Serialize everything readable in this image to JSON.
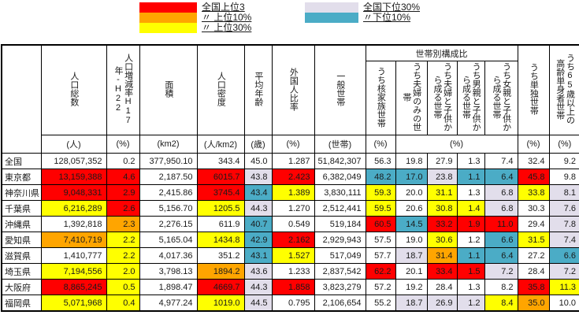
{
  "colors": {
    "top3": "#ff0000",
    "top10": "#ffa500",
    "top30": "#ffff00",
    "bottom30": "#e2deeb",
    "bottom10": "#4bacc6",
    "grid": "#000000"
  },
  "legend": {
    "left": [
      {
        "label": "全国上位3",
        "color_key": "top3"
      },
      {
        "label": "〃 上位10%",
        "color_key": "top10"
      },
      {
        "label": "〃 上位30%",
        "color_key": "top30"
      }
    ],
    "right": [
      {
        "label": "全国下位30%",
        "color_key": "bottom30"
      },
      {
        "label": "〃下位10%",
        "color_key": "bottom10"
      }
    ]
  },
  "chart_data": {
    "type": "table",
    "group_header": "世帯別構成比",
    "sub_unit": "(%)",
    "columns": [
      {
        "label": "",
        "unit": ""
      },
      {
        "label": "人口総数",
        "unit": "(人)"
      },
      {
        "label": "人口増減率H17年-H22",
        "unit": "(%)"
      },
      {
        "label": "面積",
        "unit": "(km2)"
      },
      {
        "label": "人口密度",
        "unit": "(人/km2)"
      },
      {
        "label": "平均年齢",
        "unit": "(歳)"
      },
      {
        "label": "外国人比率",
        "unit": "(%)"
      },
      {
        "label": "一般世帯",
        "unit": "(世帯)"
      },
      {
        "label": "うち核家族世帯",
        "unit": "(%)"
      },
      {
        "label": "うち夫婦のみの世帯",
        "unit": ""
      },
      {
        "label": "うち夫婦と子供から成る世帯",
        "unit": ""
      },
      {
        "label": "うち男親と子供から成る世帯",
        "unit": ""
      },
      {
        "label": "うち女親と子供から成る世帯",
        "unit": ""
      },
      {
        "label": "うち単独世帯",
        "unit": "(%)"
      },
      {
        "label": "うち65歳以上の高齢単身者世帯",
        "unit": "(%)"
      }
    ],
    "rows": [
      {
        "name": "全国",
        "values": [
          "128,057,352",
          "0.2",
          "377,950.10",
          "343.4",
          "45.0",
          "1.287",
          "51,842,307",
          "56.3",
          "19.8",
          "27.9",
          "1.3",
          "7.4",
          "32.4",
          "9.2"
        ],
        "highlights": [
          "",
          "",
          "",
          "",
          "",
          "",
          "",
          "",
          "",
          "",
          "",
          "",
          "",
          ""
        ]
      },
      {
        "name": "東京都",
        "values": [
          "13,159,388",
          "4.6",
          "2,187.50",
          "6015.7",
          "43.8",
          "2.423",
          "6,382,049",
          "48.2",
          "17.0",
          "23.8",
          "1.1",
          "6.4",
          "45.8",
          "9.8"
        ],
        "highlights": [
          "top3",
          "top3",
          "",
          "top3",
          "bottom30",
          "top3",
          "",
          "bottom10",
          "bottom10",
          "bottom30",
          "bottom10",
          "bottom10",
          "top3",
          ""
        ]
      },
      {
        "name": "神奈川県",
        "values": [
          "9,048,331",
          "2.9",
          "2,415.86",
          "3745.4",
          "43.4",
          "1.389",
          "3,830,111",
          "59.3",
          "20.0",
          "31.1",
          "1.3",
          "6.8",
          "33.8",
          "8.1"
        ],
        "highlights": [
          "top3",
          "top3",
          "",
          "top3",
          "bottom10",
          "top30",
          "",
          "top30",
          "",
          "top30",
          "",
          "bottom30",
          "top30",
          "bottom30"
        ]
      },
      {
        "name": "千葉県",
        "values": [
          "6,216,289",
          "2.6",
          "5,156.70",
          "1205.5",
          "44.3",
          "1.270",
          "2,512,441",
          "59.5",
          "20.6",
          "30.8",
          "1.4",
          "6.8",
          "30.3",
          "7.6"
        ],
        "highlights": [
          "top30",
          "top3",
          "",
          "top30",
          "bottom30",
          "",
          "",
          "top30",
          "",
          "top30",
          "top30",
          "bottom30",
          "",
          "bottom30"
        ]
      },
      {
        "name": "沖縄県",
        "values": [
          "1,392,818",
          "2.3",
          "2,276.15",
          "611.9",
          "40.7",
          "0.549",
          "519,184",
          "60.5",
          "14.5",
          "33.2",
          "1.9",
          "11.0",
          "29.4",
          "7.8"
        ],
        "highlights": [
          "",
          "top10",
          "",
          "",
          "bottom10",
          "",
          "",
          "top3",
          "bottom10",
          "top3",
          "top3",
          "top3",
          "",
          "bottom30"
        ]
      },
      {
        "name": "愛知県",
        "values": [
          "7,410,719",
          "2.2",
          "5,165.04",
          "1434.8",
          "42.9",
          "2.162",
          "2,929,943",
          "57.5",
          "19.0",
          "30.6",
          "1.2",
          "6.6",
          "31.5",
          "7.4"
        ],
        "highlights": [
          "top10",
          "top30",
          "",
          "top30",
          "bottom10",
          "top3",
          "",
          "",
          "",
          "top30",
          "",
          "bottom10",
          "top30",
          "bottom30"
        ]
      },
      {
        "name": "滋賀県",
        "values": [
          "1,410,777",
          "2.2",
          "4,017.36",
          "351.2",
          "43.1",
          "1.527",
          "517,049",
          "57.7",
          "18.7",
          "31.4",
          "1.1",
          "6.4",
          "27.2",
          "6.6"
        ],
        "highlights": [
          "",
          "top30",
          "",
          "",
          "bottom10",
          "top30",
          "",
          "",
          "bottom30",
          "top10",
          "bottom10",
          "bottom10",
          "",
          "bottom10"
        ]
      },
      {
        "name": "埼玉県",
        "values": [
          "7,194,556",
          "2.0",
          "3,798.13",
          "1894.2",
          "43.6",
          "1.233",
          "2,837,542",
          "62.2",
          "20.1",
          "33.4",
          "1.5",
          "7.2",
          "28.4",
          "7.2"
        ],
        "highlights": [
          "top30",
          "top30",
          "",
          "top10",
          "bottom30",
          "",
          "",
          "top3",
          "",
          "top3",
          "top3",
          "bottom30",
          "",
          "bottom30"
        ]
      },
      {
        "name": "大阪府",
        "values": [
          "8,865,245",
          "0.5",
          "1,898.47",
          "4669.7",
          "44.3",
          "1.858",
          "3,823,279",
          "57.2",
          "19.2",
          "28.4",
          "1.3",
          "8.2",
          "35.8",
          "11.3"
        ],
        "highlights": [
          "top3",
          "top30",
          "",
          "top3",
          "bottom30",
          "top3",
          "",
          "",
          "",
          "",
          "",
          "",
          "top3",
          "top30"
        ]
      },
      {
        "name": "福岡県",
        "values": [
          "5,071,968",
          "0.4",
          "4,977.24",
          "1019.0",
          "44.5",
          "0.795",
          "2,106,654",
          "55.2",
          "18.7",
          "26.9",
          "1.2",
          "8.4",
          "35.0",
          "10.0"
        ],
        "highlights": [
          "top30",
          "top30",
          "",
          "top30",
          "bottom30",
          "",
          "",
          "",
          "bottom30",
          "bottom30",
          "bottom30",
          "top30",
          "top10",
          ""
        ]
      }
    ]
  }
}
